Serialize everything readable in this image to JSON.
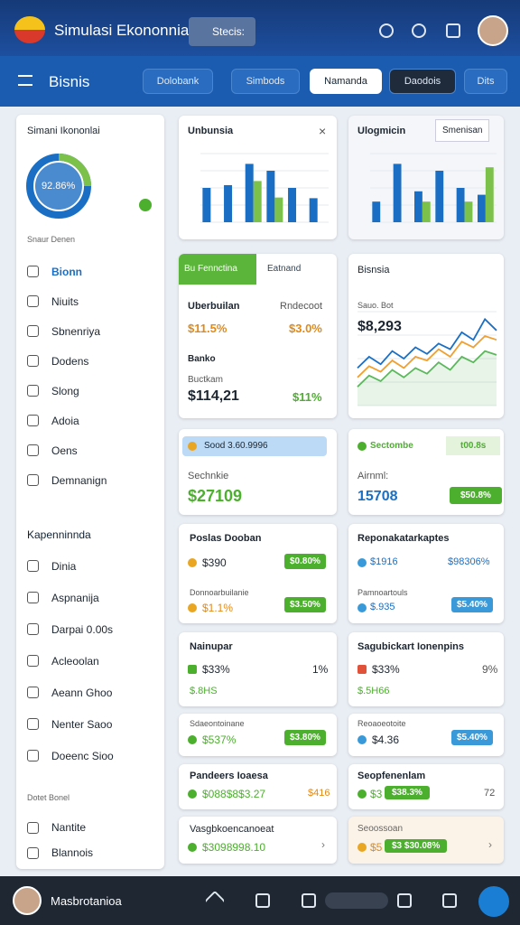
{
  "header": {
    "title": "Simulasi Ekononnia",
    "search": "Stecis:"
  },
  "nav": {
    "title": "Bisnis",
    "tabs": [
      "Dolobank",
      "Simbods",
      "Namanda",
      "Daodois",
      "Dits"
    ]
  },
  "sidebar": {
    "title": "Simani Ikononlai",
    "donut_label": "92.86%",
    "groups": [
      {
        "title": "Snaur Denen",
        "items": [
          "Bionn",
          "Niuits",
          "Sbnenriya",
          "Dodens",
          "Slong",
          "Adoia",
          "Oens",
          "Demnanign"
        ]
      },
      {
        "title": "Kapenninnda",
        "items": [
          "Dinia",
          "Aspnanija",
          "Darpai 0.00s",
          "Acleoolan",
          "Aeann Ghoo",
          "Nenter Saoo",
          "Doeenc Sioo"
        ]
      },
      {
        "title": "Dotet Bonel",
        "items": [
          "Nantite",
          "Blannois"
        ]
      }
    ]
  },
  "charts": [
    {
      "type": "bar",
      "title": "Unbunsia",
      "ylim": [
        0,
        100
      ],
      "series": [
        {
          "color": "#1a6fc4",
          "values": [
            50,
            54,
            85,
            75,
            50,
            35
          ]
        },
        {
          "color": "#7cc24a",
          "values": [
            null,
            null,
            60,
            36,
            null,
            null
          ]
        }
      ]
    },
    {
      "type": "bar",
      "title": "Ulogmicin",
      "button": "Smenisan",
      "ylim": [
        0,
        100
      ],
      "series": [
        {
          "color": "#1a6fc4",
          "values": [
            30,
            85,
            45,
            75,
            50,
            40
          ]
        },
        {
          "color": "#7cc24a",
          "values": [
            null,
            null,
            30,
            null,
            30,
            80
          ]
        }
      ]
    },
    {
      "type": "line",
      "title": "Bisnsia",
      "label": "Sauo. Bot",
      "value": "$8,293",
      "ylim": [
        0,
        100
      ],
      "series": [
        {
          "color": "#1a6fc4",
          "values": [
            40,
            52,
            44,
            58,
            50,
            62,
            55,
            66,
            60,
            78,
            70,
            92,
            80
          ]
        },
        {
          "color": "#f0a030",
          "values": [
            30,
            42,
            36,
            48,
            40,
            52,
            48,
            60,
            52,
            68,
            62,
            74,
            70
          ]
        },
        {
          "color": "#5cb85c",
          "values": [
            20,
            32,
            26,
            38,
            30,
            40,
            34,
            46,
            38,
            52,
            46,
            58,
            54
          ]
        }
      ]
    }
  ],
  "cards": [
    {
      "tabs": [
        "Bu Fennctina",
        "Eatnand"
      ],
      "labels": [
        "Uberbuilan",
        "Rndecoot"
      ],
      "values": [
        "$11.5%",
        "$3.0%"
      ],
      "sub": "Banko",
      "sub2": "Buctkam",
      "values2": [
        "$114,21",
        "$11%"
      ]
    },
    {
      "pill": "Sood 3.60.9996",
      "label": "Sechnkie",
      "value": "$27109"
    },
    {
      "title": "Sectombe",
      "tag": "t00.8s",
      "label": "Airnml:",
      "value": "15708",
      "badge": "$50.8%"
    },
    {
      "title": "Poslas Dooban",
      "value": "$390",
      "badge": "$0.80%",
      "label": "Donnoarbuilanie",
      "value2": "$1.1%",
      "badge2": "$3.50%"
    },
    {
      "title": "Reponakatarkaptes",
      "value": "$1916",
      "right": "$98306%",
      "label": "Pamnoartouls",
      "value2": "$.935",
      "badge2": "$5.40%"
    },
    {
      "title": "Nainupar",
      "value": "$33%",
      "right": "1%",
      "value2": "$.8HS"
    },
    {
      "title": "Sagubickart Ionenpins",
      "value": "$33%",
      "right": "9%",
      "value2": "$.5H66"
    },
    {
      "title": "Sdaeontoinane",
      "value": "$537%",
      "badge": "$3.80%"
    },
    {
      "title": "Reoaoeotoite",
      "value": "$4.36",
      "badge": "$5.40%"
    },
    {
      "title": "Pandeers Ioaesa",
      "value": "$088$8$3.27",
      "right": "$416"
    },
    {
      "title": "Seopfenenlam",
      "value": "$3",
      "pill": "$38.3%",
      "right": "72"
    },
    {
      "title": "Vasgbkoencanoeat",
      "value": "$3098998.10"
    },
    {
      "title": "Seoossoan",
      "value": "$5",
      "pill": "$3 $30.08%"
    }
  ],
  "footer": {
    "user": "Masbrotanioa"
  }
}
